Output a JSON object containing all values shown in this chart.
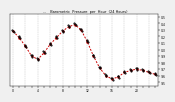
{
  "title": "  --    Barometric  Pressure  per  Hour  (24 Hours)",
  "hours": [
    0,
    1,
    2,
    3,
    4,
    5,
    6,
    7,
    8,
    9,
    10,
    11,
    12,
    13,
    14,
    15,
    16,
    17,
    18,
    19,
    20,
    21,
    22,
    23
  ],
  "pressure_red": [
    30.28,
    30.18,
    30.05,
    29.9,
    29.85,
    29.95,
    30.08,
    30.18,
    30.28,
    30.35,
    30.38,
    30.3,
    30.12,
    29.9,
    29.72,
    29.6,
    29.55,
    29.58,
    29.65,
    29.68,
    29.7,
    29.68,
    29.65,
    29.62
  ],
  "pressure_black_scatter": [
    [
      0.0,
      30.29
    ],
    [
      0.1,
      30.27
    ],
    [
      -0.1,
      30.3
    ],
    [
      1.0,
      30.19
    ],
    [
      1.1,
      30.17
    ],
    [
      0.9,
      30.2
    ],
    [
      2.0,
      30.06
    ],
    [
      2.1,
      30.04
    ],
    [
      1.9,
      30.07
    ],
    [
      3.0,
      29.91
    ],
    [
      3.1,
      29.89
    ],
    [
      2.9,
      29.92
    ],
    [
      4.0,
      29.86
    ],
    [
      4.1,
      29.84
    ],
    [
      3.9,
      29.87
    ],
    [
      5.0,
      29.96
    ],
    [
      5.1,
      29.94
    ],
    [
      4.9,
      29.97
    ],
    [
      6.0,
      30.09
    ],
    [
      6.1,
      30.07
    ],
    [
      5.9,
      30.1
    ],
    [
      7.0,
      30.19
    ],
    [
      7.1,
      30.17
    ],
    [
      6.9,
      30.2
    ],
    [
      8.0,
      30.29
    ],
    [
      8.1,
      30.27
    ],
    [
      7.9,
      30.3
    ],
    [
      9.0,
      30.36
    ],
    [
      9.1,
      30.34
    ],
    [
      8.9,
      30.37
    ],
    [
      10.0,
      30.39
    ],
    [
      10.1,
      30.37
    ],
    [
      9.9,
      30.4
    ],
    [
      11.0,
      30.31
    ],
    [
      11.1,
      30.29
    ],
    [
      10.9,
      30.32
    ],
    [
      12.0,
      30.13
    ],
    [
      12.1,
      30.11
    ],
    [
      11.9,
      30.14
    ],
    [
      13.0,
      29.91
    ],
    [
      13.1,
      29.89
    ],
    [
      12.9,
      29.92
    ],
    [
      14.0,
      29.73
    ],
    [
      14.1,
      29.71
    ],
    [
      13.9,
      29.74
    ],
    [
      15.0,
      29.61
    ],
    [
      15.1,
      29.59
    ],
    [
      14.9,
      29.62
    ],
    [
      16.0,
      29.56
    ],
    [
      16.1,
      29.54
    ],
    [
      15.9,
      29.57
    ],
    [
      17.0,
      29.59
    ],
    [
      17.1,
      29.57
    ],
    [
      16.9,
      29.6
    ],
    [
      18.0,
      29.66
    ],
    [
      18.1,
      29.64
    ],
    [
      17.9,
      29.67
    ],
    [
      19.0,
      29.69
    ],
    [
      19.1,
      29.67
    ],
    [
      18.9,
      29.7
    ],
    [
      20.0,
      29.71
    ],
    [
      20.1,
      29.69
    ],
    [
      19.9,
      29.72
    ],
    [
      21.0,
      29.69
    ],
    [
      21.1,
      29.67
    ],
    [
      20.9,
      29.7
    ],
    [
      22.0,
      29.66
    ],
    [
      22.1,
      29.64
    ],
    [
      21.9,
      29.67
    ],
    [
      23.0,
      29.63
    ],
    [
      23.1,
      29.61
    ],
    [
      22.9,
      29.64
    ]
  ],
  "ylim": [
    29.45,
    30.55
  ],
  "yticks": [
    29.5,
    29.6,
    29.7,
    29.8,
    29.9,
    30.0,
    30.1,
    30.2,
    30.3,
    30.4,
    30.5
  ],
  "ytick_labels": [
    "9.5",
    "9.6",
    "9.7",
    "9.8",
    "9.9",
    "0.0",
    "0.1",
    "0.2",
    "0.3",
    "0.4",
    "0.5"
  ],
  "xlim": [
    -0.5,
    23.5
  ],
  "xtick_positions": [
    0,
    1,
    2,
    3,
    4,
    5,
    6,
    7,
    8,
    9,
    10,
    11,
    12,
    13,
    14,
    15,
    16,
    17,
    18,
    19,
    20,
    21,
    22,
    23
  ],
  "xtick_labels": [
    "0",
    "",
    "",
    "",
    "4",
    "",
    "",
    "",
    "8",
    "",
    "",
    "",
    "12",
    "",
    "",
    "",
    "16",
    "",
    "",
    "",
    "20",
    "",
    "",
    ""
  ],
  "bg_color": "#f0f0f0",
  "plot_bg": "#ffffff",
  "red_color": "#cc0000",
  "black_color": "#000000",
  "grid_color": "#aaaaaa",
  "title_color": "#000000"
}
